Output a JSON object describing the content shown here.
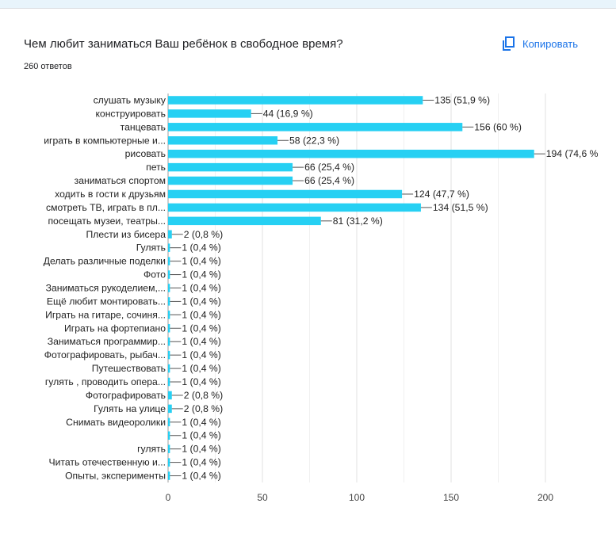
{
  "question": "Чем любит заниматься Ваш ребёнок в свободное время?",
  "responses": "260 ответов",
  "copy_label": "Копировать",
  "copy_icon": "copy-icon",
  "accent_color": "#1a73e8",
  "chart_data": {
    "type": "bar",
    "orientation": "horizontal",
    "xlim": [
      0,
      200
    ],
    "xticks": [
      "0",
      "50",
      "100",
      "150",
      "200"
    ],
    "grid": true,
    "bar_color": "#26d0f3",
    "categories": [
      "слушать музыку",
      "конструировать",
      "танцевать",
      "играть в компьютерные и...",
      "рисовать",
      "петь",
      "заниматься спортом",
      "ходить в гости к друзьям",
      "смотреть ТВ, играть в пл...",
      "посещать музеи, театры...",
      "Плести из бисера",
      "Гулять",
      "Делать различные поделки",
      "Фото",
      "Заниматься рукоделием,...",
      "Ещё любит монтировать...",
      "Играть на гитаре, сочиня...",
      "Играть на фортепиано",
      "Заниматься программир...",
      "Фотографировать, рыбач...",
      "Путешествовать",
      "гулять , проводить опера...",
      "Фотографировать",
      "Гулять на улице",
      "Снимать видеоролики",
      "",
      "гулять",
      "Читать отечественную и...",
      "Опыты, эксперименты"
    ],
    "values": [
      135,
      44,
      156,
      58,
      194,
      66,
      66,
      124,
      134,
      81,
      2,
      1,
      1,
      1,
      1,
      1,
      1,
      1,
      1,
      1,
      1,
      1,
      2,
      2,
      1,
      1,
      1,
      1,
      1
    ],
    "value_labels": [
      "135 (51,9 %)",
      "44 (16,9 %)",
      "156 (60 %)",
      "58 (22,3 %)",
      "194 (74,6 %",
      "66 (25,4 %)",
      "66 (25,4 %)",
      "124 (47,7 %)",
      "134 (51,5 %)",
      "81 (31,2 %)",
      "2 (0,8 %)",
      "1 (0,4 %)",
      "1 (0,4 %)",
      "1 (0,4 %)",
      "1 (0,4 %)",
      "1 (0,4 %)",
      "1 (0,4 %)",
      "1 (0,4 %)",
      "1 (0,4 %)",
      "1 (0,4 %)",
      "1 (0,4 %)",
      "1 (0,4 %)",
      "2 (0,8 %)",
      "2 (0,8 %)",
      "1 (0,4 %)",
      "1 (0,4 %)",
      "1 (0,4 %)",
      "1 (0,4 %)",
      "1 (0,4 %)"
    ]
  }
}
